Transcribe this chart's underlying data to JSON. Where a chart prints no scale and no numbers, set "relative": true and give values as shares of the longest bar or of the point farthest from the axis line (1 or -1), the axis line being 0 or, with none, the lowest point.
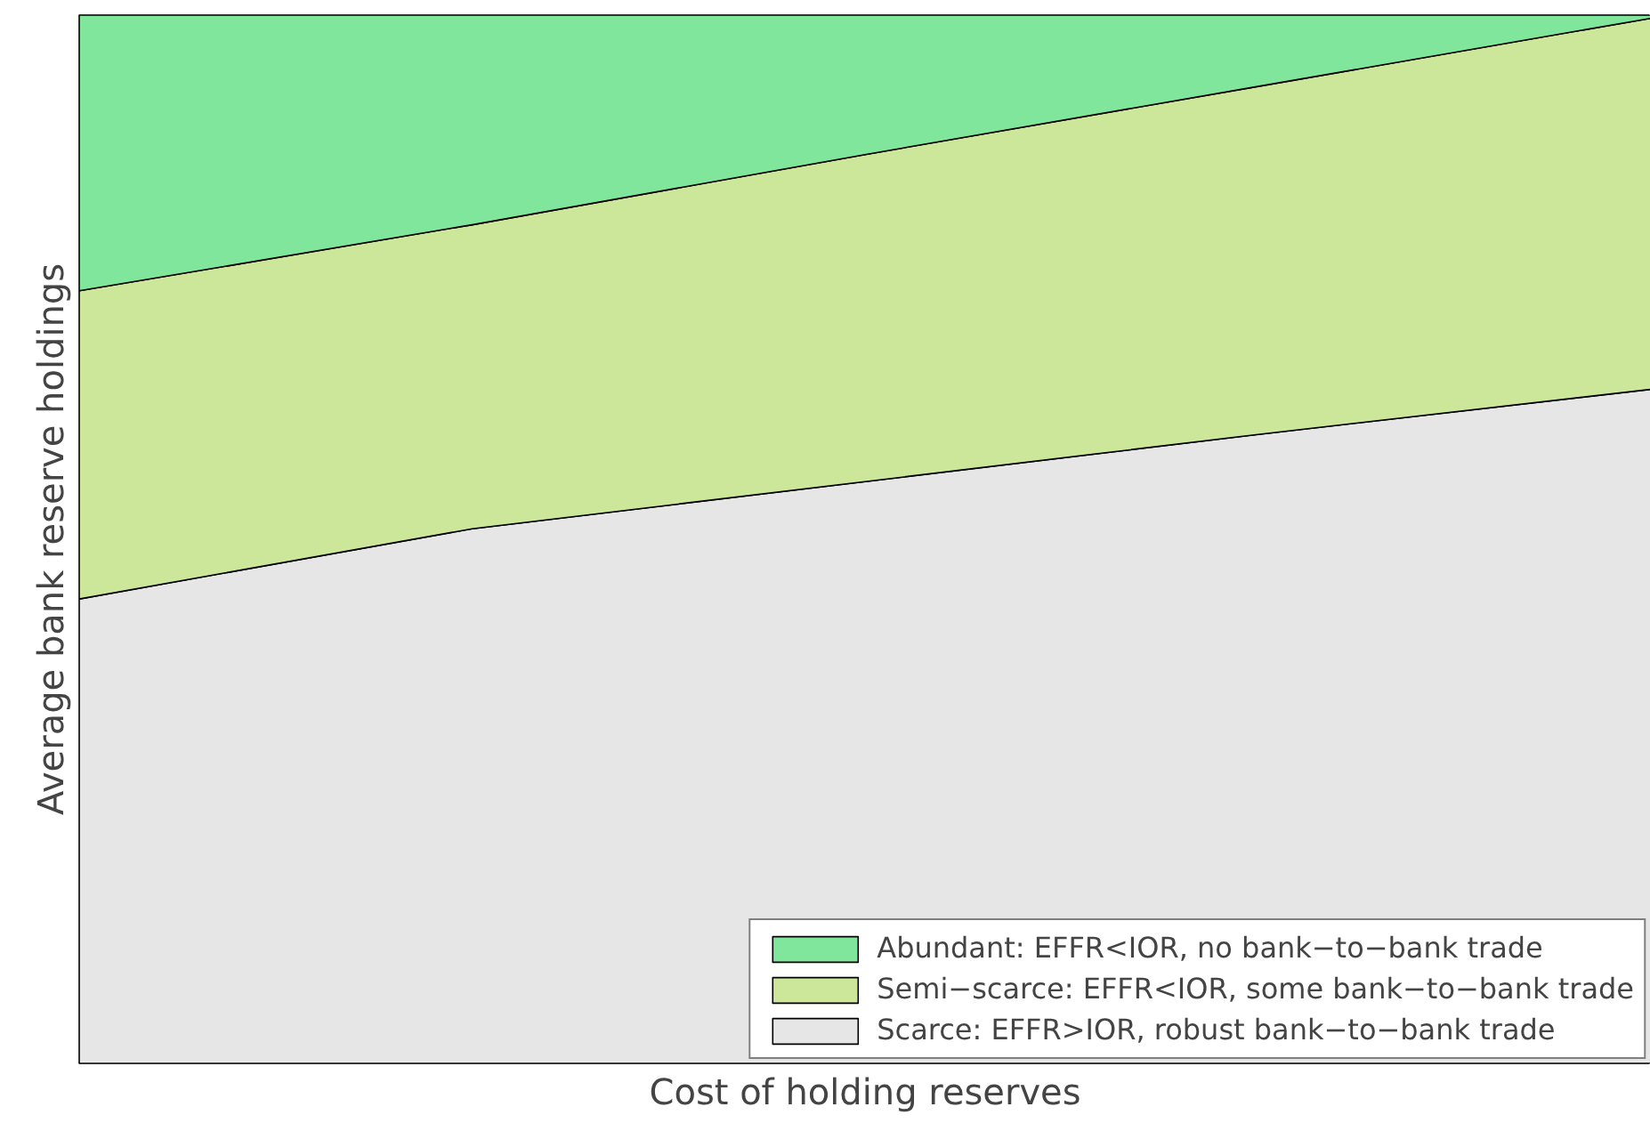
{
  "chart_data": {
    "type": "area",
    "stacked": true,
    "relative": true,
    "xlabel": "Cost of holding reserves",
    "ylabel": "Average bank reserve holdings",
    "categories": [
      null,
      null,
      null,
      null,
      null
    ],
    "series": [
      {
        "name": "Scarce: EFFR>IOR, robust bank−to−bank trade",
        "color": "#e6e6e6",
        "values": [
          0.443,
          0.51,
          0.555,
          0.6,
          0.643
        ]
      },
      {
        "name": "Semi−scarce: EFFR<IOR, some bank−to−bank trade",
        "color": "#cce69a",
        "values": [
          0.294,
          0.29,
          0.312,
          0.332,
          0.354
        ]
      },
      {
        "name": "Abundant: EFFR<IOR, no bank−to−bank trade",
        "color": "#80e69c",
        "values": [
          0.263,
          0.2,
          0.133,
          0.068,
          0.003
        ]
      }
    ],
    "legend": "bottom right",
    "tick_labels": false
  }
}
